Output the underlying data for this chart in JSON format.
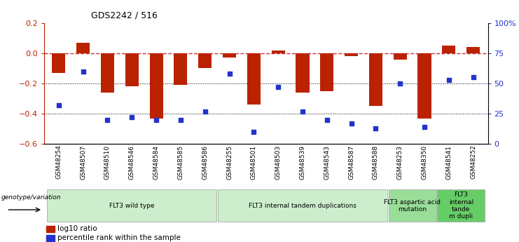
{
  "title": "GDS2242 / 516",
  "samples": [
    "GSM48254",
    "GSM48507",
    "GSM48510",
    "GSM48546",
    "GSM48584",
    "GSM48585",
    "GSM48586",
    "GSM48255",
    "GSM48501",
    "GSM48503",
    "GSM48539",
    "GSM48543",
    "GSM48587",
    "GSM48588",
    "GSM48253",
    "GSM48350",
    "GSM48541",
    "GSM48252"
  ],
  "log10_ratio": [
    -0.13,
    0.07,
    -0.26,
    -0.22,
    -0.43,
    -0.21,
    -0.1,
    -0.03,
    -0.34,
    0.02,
    -0.26,
    -0.25,
    -0.02,
    -0.35,
    -0.04,
    -0.43,
    0.05,
    0.04
  ],
  "percentile": [
    32,
    60,
    20,
    22,
    20,
    20,
    27,
    58,
    10,
    47,
    27,
    20,
    17,
    13,
    50,
    14,
    53,
    55
  ],
  "bar_color": "#bb2200",
  "dot_color": "#2233cc",
  "zero_line_color": "#cc3333",
  "ylim_left": [
    -0.6,
    0.2
  ],
  "ylim_right": [
    0,
    100
  ],
  "yticks_left": [
    -0.6,
    -0.4,
    -0.2,
    0.0,
    0.2
  ],
  "yticks_right": [
    0,
    25,
    50,
    75,
    100
  ],
  "ytick_labels_right": [
    "0",
    "25",
    "50",
    "75",
    "100%"
  ],
  "groups": [
    {
      "label": "FLT3 wild type",
      "start": 0,
      "end": 6,
      "color": "#cceecc"
    },
    {
      "label": "FLT3 internal tandem duplications",
      "start": 7,
      "end": 13,
      "color": "#cceecc"
    },
    {
      "label": "FLT3 aspartic acid\nmutation",
      "start": 14,
      "end": 15,
      "color": "#99dd99"
    },
    {
      "label": "FLT3\ninternal\ntande\nm dupli",
      "start": 16,
      "end": 17,
      "color": "#66cc66"
    }
  ],
  "group_label_prefix": "genotype/variation",
  "legend_bar_label": "log10 ratio",
  "legend_dot_label": "percentile rank within the sample",
  "background_color": "#ffffff"
}
